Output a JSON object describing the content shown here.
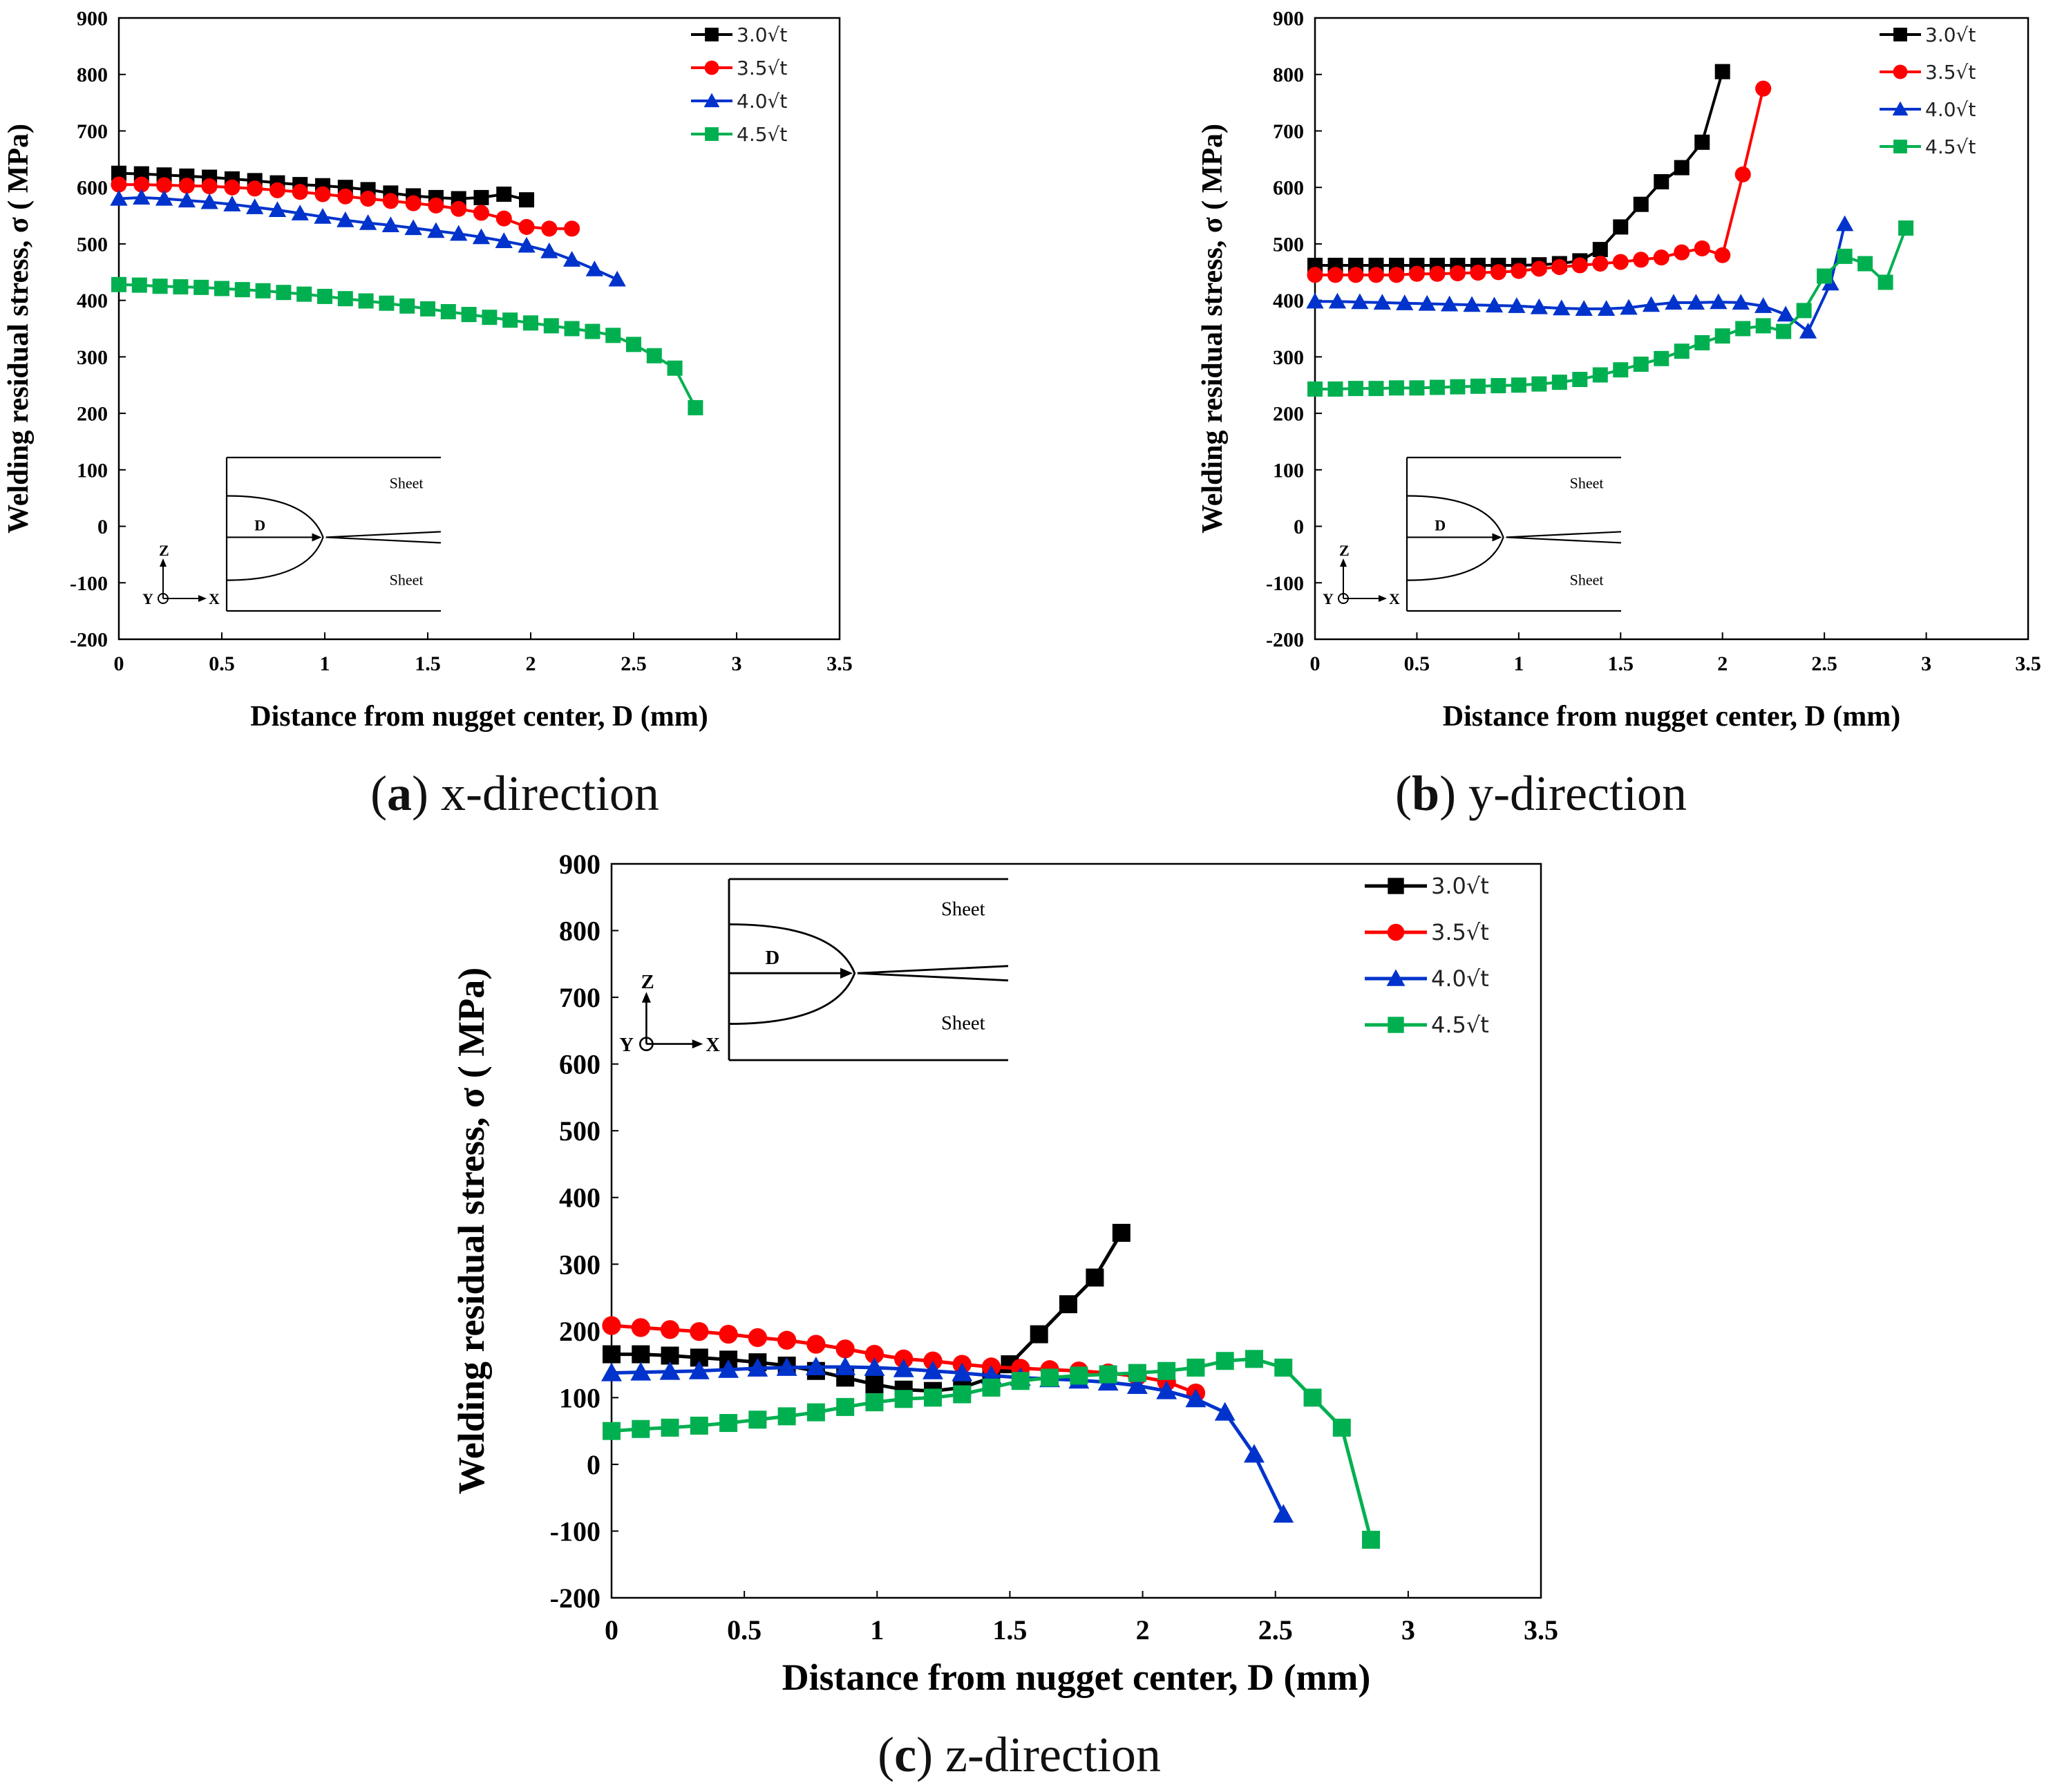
{
  "colors": {
    "black": "#000000",
    "red": "#ff0000",
    "blue": "#0033cc",
    "green": "#00b050",
    "axis": "#000000"
  },
  "inset": {
    "sheet_top": "Sheet",
    "sheet_bottom": "Sheet",
    "dim_label": "D",
    "axis_z": "Z",
    "axis_y": "Y",
    "axis_x": "X"
  },
  "chart_data": [
    {
      "id": "a",
      "type": "line",
      "caption_letter": "a",
      "caption_text": " x-direction",
      "xlabel": "Distance from nugget center, D (mm)",
      "ylabel": "Welding residual stress, σ ( MPa)",
      "xlim": [
        0,
        3.5
      ],
      "ylim": [
        -200,
        900
      ],
      "x_ticks": [
        0,
        0.5,
        1,
        1.5,
        2,
        2.5,
        3,
        3.5
      ],
      "x_tick_labels": [
        "0",
        "0.5",
        "1",
        "1.5",
        "2",
        "2.5",
        "3",
        "3.5"
      ],
      "y_ticks": [
        -200,
        -100,
        0,
        100,
        200,
        300,
        400,
        500,
        600,
        700,
        800,
        900
      ],
      "y_tick_labels": [
        "-200",
        "-100",
        "0",
        "100",
        "200",
        "300",
        "400",
        "500",
        "600",
        "700",
        "800",
        "900"
      ],
      "legend": "top-right",
      "series": [
        {
          "name": "3.0√t",
          "color": "#000000",
          "marker": "square",
          "x": [
            0,
            0.11,
            0.22,
            0.33,
            0.44,
            0.55,
            0.66,
            0.77,
            0.88,
            0.99,
            1.1,
            1.21,
            1.32,
            1.43,
            1.54,
            1.65,
            1.76,
            1.87,
            1.98
          ],
          "y": [
            625,
            624,
            622,
            620,
            618,
            615,
            612,
            608,
            605,
            603,
            600,
            596,
            590,
            585,
            582,
            580,
            582,
            588,
            578
          ]
        },
        {
          "name": "3.5√t",
          "color": "#ff0000",
          "marker": "circle",
          "x": [
            0,
            0.11,
            0.22,
            0.33,
            0.44,
            0.55,
            0.66,
            0.77,
            0.88,
            0.99,
            1.1,
            1.21,
            1.32,
            1.43,
            1.54,
            1.65,
            1.76,
            1.87,
            1.98,
            2.09,
            2.2
          ],
          "y": [
            605,
            605,
            604,
            603,
            602,
            600,
            598,
            595,
            592,
            588,
            584,
            580,
            576,
            572,
            568,
            562,
            555,
            545,
            530,
            527,
            527
          ]
        },
        {
          "name": "4.0√t",
          "color": "#0033cc",
          "marker": "triangle",
          "x": [
            0,
            0.11,
            0.22,
            0.33,
            0.44,
            0.55,
            0.66,
            0.77,
            0.88,
            0.99,
            1.1,
            1.21,
            1.32,
            1.43,
            1.54,
            1.65,
            1.76,
            1.87,
            1.98,
            2.09,
            2.2,
            2.31,
            2.42
          ],
          "y": [
            580,
            582,
            580,
            577,
            574,
            570,
            565,
            560,
            554,
            548,
            542,
            537,
            533,
            528,
            523,
            518,
            512,
            505,
            497,
            487,
            472,
            455,
            437
          ]
        },
        {
          "name": "4.5√t",
          "color": "#00b050",
          "marker": "square",
          "x": [
            0,
            0.1,
            0.2,
            0.3,
            0.4,
            0.5,
            0.6,
            0.7,
            0.8,
            0.9,
            1.0,
            1.1,
            1.2,
            1.3,
            1.4,
            1.5,
            1.6,
            1.7,
            1.8,
            1.9,
            2.0,
            2.1,
            2.2,
            2.3,
            2.4,
            2.5,
            2.6,
            2.7,
            2.8
          ],
          "y": [
            428,
            427,
            425,
            424,
            423,
            421,
            419,
            417,
            414,
            411,
            407,
            403,
            399,
            395,
            390,
            385,
            380,
            375,
            370,
            365,
            360,
            355,
            350,
            345,
            338,
            322,
            302,
            280,
            210
          ]
        }
      ]
    },
    {
      "id": "b",
      "type": "line",
      "caption_letter": "b",
      "caption_text": " y-direction",
      "xlabel": "Distance from nugget center, D (mm)",
      "ylabel": "Welding residual stress, σ ( MPa)",
      "xlim": [
        0,
        3.5
      ],
      "ylim": [
        -200,
        900
      ],
      "x_ticks": [
        0,
        0.5,
        1,
        1.5,
        2,
        2.5,
        3,
        3.5
      ],
      "x_tick_labels": [
        "0",
        "0.5",
        "1",
        "1.5",
        "2",
        "2.5",
        "3",
        "3.5"
      ],
      "y_ticks": [
        -200,
        -100,
        0,
        100,
        200,
        300,
        400,
        500,
        600,
        700,
        800,
        900
      ],
      "y_tick_labels": [
        "-200",
        "-100",
        "0",
        "100",
        "200",
        "300",
        "400",
        "500",
        "600",
        "700",
        "800",
        "900"
      ],
      "legend": "top-right",
      "series": [
        {
          "name": "3.0√t",
          "color": "#000000",
          "marker": "square",
          "x": [
            0,
            0.1,
            0.2,
            0.3,
            0.4,
            0.5,
            0.6,
            0.7,
            0.8,
            0.9,
            1.0,
            1.1,
            1.2,
            1.3,
            1.4,
            1.5,
            1.6,
            1.7,
            1.8,
            1.9,
            2.0
          ],
          "y": [
            462,
            462,
            462,
            462,
            462,
            462,
            462,
            462,
            462,
            462,
            462,
            463,
            465,
            470,
            490,
            530,
            570,
            610,
            635,
            680,
            805
          ]
        },
        {
          "name": "3.5√t",
          "color": "#ff0000",
          "marker": "circle",
          "x": [
            0,
            0.1,
            0.2,
            0.3,
            0.4,
            0.5,
            0.6,
            0.7,
            0.8,
            0.9,
            1.0,
            1.1,
            1.2,
            1.3,
            1.4,
            1.5,
            1.6,
            1.7,
            1.8,
            1.9,
            2.0,
            2.1,
            2.2
          ],
          "y": [
            445,
            445,
            445,
            445,
            445,
            447,
            447,
            448,
            449,
            450,
            452,
            456,
            459,
            462,
            465,
            468,
            472,
            476,
            485,
            492,
            480,
            623,
            775
          ]
        },
        {
          "name": "4.0√t",
          "color": "#0033cc",
          "marker": "triangle",
          "x": [
            0,
            0.11,
            0.22,
            0.33,
            0.44,
            0.55,
            0.66,
            0.77,
            0.88,
            0.99,
            1.1,
            1.21,
            1.32,
            1.43,
            1.54,
            1.65,
            1.76,
            1.87,
            1.98,
            2.09,
            2.2,
            2.31,
            2.42,
            2.53,
            2.6
          ],
          "y": [
            398,
            398,
            397,
            396,
            395,
            394,
            393,
            392,
            391,
            390,
            388,
            386,
            385,
            385,
            387,
            392,
            396,
            396,
            397,
            396,
            390,
            375,
            345,
            430,
            535
          ]
        },
        {
          "name": "4.5√t",
          "color": "#00b050",
          "marker": "square",
          "x": [
            0,
            0.1,
            0.2,
            0.3,
            0.4,
            0.5,
            0.6,
            0.7,
            0.8,
            0.9,
            1.0,
            1.1,
            1.2,
            1.3,
            1.4,
            1.5,
            1.6,
            1.7,
            1.8,
            1.9,
            2.0,
            2.1,
            2.2,
            2.3,
            2.4,
            2.5,
            2.6,
            2.7,
            2.8,
            2.9
          ],
          "y": [
            243,
            243,
            244,
            244,
            245,
            245,
            246,
            247,
            248,
            249,
            250,
            252,
            255,
            260,
            268,
            277,
            287,
            297,
            310,
            325,
            337,
            350,
            355,
            345,
            382,
            443,
            478,
            465,
            432,
            528
          ]
        }
      ]
    },
    {
      "id": "c",
      "type": "line",
      "caption_letter": "c",
      "caption_text": " z-direction",
      "xlabel": "Distance from nugget center, D (mm)",
      "ylabel": "Welding residual stress, σ ( MPa)",
      "xlim": [
        0,
        3.5
      ],
      "ylim": [
        -200,
        900
      ],
      "x_ticks": [
        0,
        0.5,
        1,
        1.5,
        2,
        2.5,
        3,
        3.5
      ],
      "x_tick_labels": [
        "0",
        "0.5",
        "1",
        "1.5",
        "2",
        "2.5",
        "3",
        "3.5"
      ],
      "y_ticks": [
        -200,
        -100,
        0,
        100,
        200,
        300,
        400,
        500,
        600,
        700,
        800,
        900
      ],
      "y_tick_labels": [
        "-200",
        "-100",
        "0",
        "100",
        "200",
        "300",
        "400",
        "500",
        "600",
        "700",
        "800",
        "900"
      ],
      "legend": "top-right",
      "series": [
        {
          "name": "3.0√t",
          "color": "#000000",
          "marker": "square",
          "x": [
            0,
            0.11,
            0.22,
            0.33,
            0.44,
            0.55,
            0.66,
            0.77,
            0.88,
            0.99,
            1.1,
            1.21,
            1.32,
            1.43,
            1.5,
            1.61,
            1.72,
            1.82,
            1.92
          ],
          "y": [
            165,
            165,
            163,
            160,
            157,
            153,
            148,
            140,
            130,
            120,
            112,
            110,
            115,
            130,
            150,
            195,
            240,
            280,
            347
          ]
        },
        {
          "name": "3.5√t",
          "color": "#ff0000",
          "marker": "circle",
          "x": [
            0,
            0.11,
            0.22,
            0.33,
            0.44,
            0.55,
            0.66,
            0.77,
            0.88,
            0.99,
            1.1,
            1.21,
            1.32,
            1.43,
            1.54,
            1.65,
            1.76,
            1.87,
            1.98,
            2.09,
            2.2
          ],
          "y": [
            208,
            205,
            202,
            199,
            195,
            190,
            186,
            180,
            173,
            165,
            158,
            155,
            150,
            146,
            144,
            142,
            140,
            137,
            132,
            124,
            107
          ]
        },
        {
          "name": "4.0√t",
          "color": "#0033cc",
          "marker": "triangle",
          "x": [
            0,
            0.11,
            0.22,
            0.33,
            0.44,
            0.55,
            0.66,
            0.77,
            0.88,
            0.99,
            1.1,
            1.21,
            1.32,
            1.43,
            1.54,
            1.65,
            1.76,
            1.87,
            1.98,
            2.09,
            2.2,
            2.31,
            2.42,
            2.53
          ],
          "y": [
            137,
            138,
            139,
            140,
            142,
            144,
            145,
            146,
            146,
            145,
            143,
            140,
            137,
            133,
            130,
            128,
            126,
            123,
            118,
            110,
            98,
            78,
            15,
            -75
          ]
        },
        {
          "name": "4.5√t",
          "color": "#00b050",
          "marker": "square",
          "x": [
            0,
            0.11,
            0.22,
            0.33,
            0.44,
            0.55,
            0.66,
            0.77,
            0.88,
            0.99,
            1.1,
            1.21,
            1.32,
            1.43,
            1.54,
            1.65,
            1.76,
            1.87,
            1.98,
            2.09,
            2.2,
            2.31,
            2.42,
            2.53,
            2.64,
            2.75,
            2.86
          ],
          "y": [
            50,
            53,
            55,
            58,
            62,
            67,
            72,
            78,
            86,
            93,
            98,
            100,
            105,
            115,
            125,
            130,
            133,
            135,
            137,
            140,
            145,
            155,
            158,
            145,
            100,
            55,
            -113
          ]
        }
      ]
    }
  ]
}
